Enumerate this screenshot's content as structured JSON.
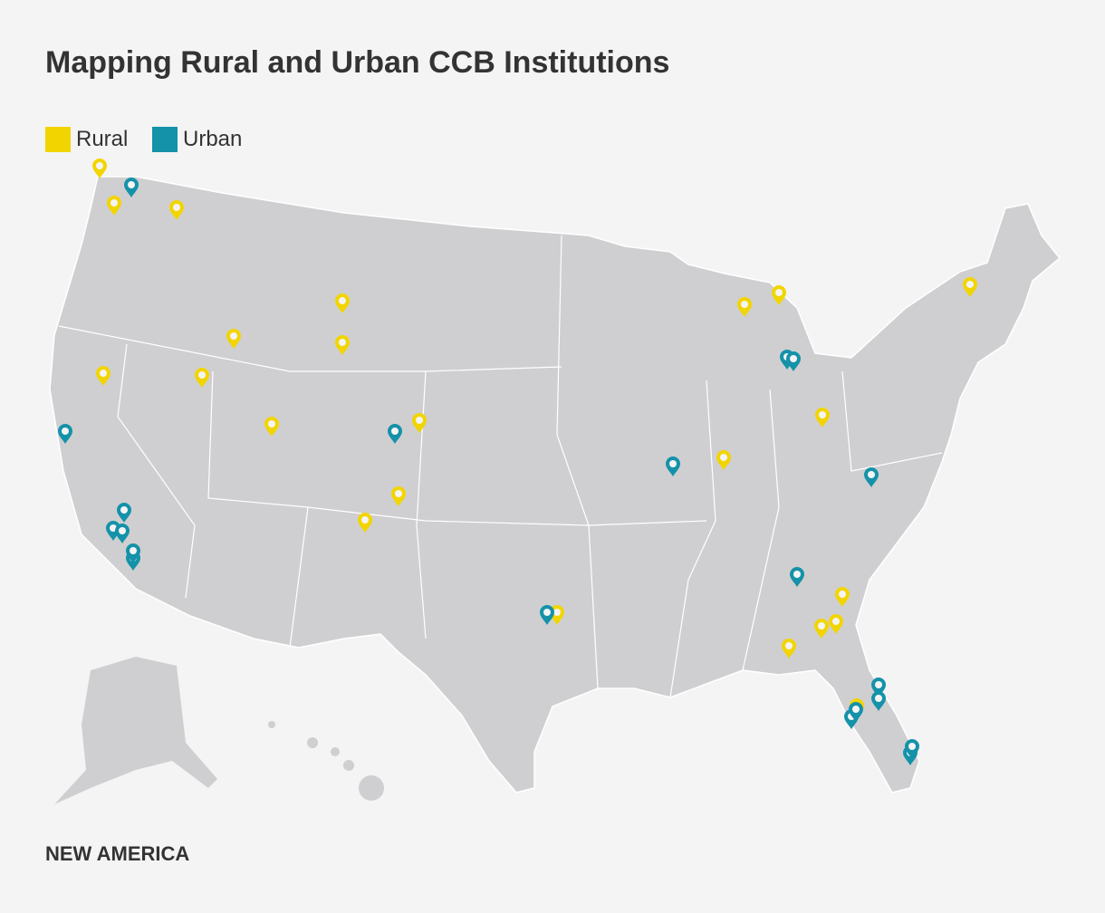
{
  "header": {
    "title": "Mapping Rural and Urban CCB Institutions"
  },
  "legend": [
    {
      "label": "Rural",
      "color": "#f2d500"
    },
    {
      "label": "Urban",
      "color": "#1492a9"
    }
  ],
  "footer": {
    "text": "NEW AMERICA"
  }
}
